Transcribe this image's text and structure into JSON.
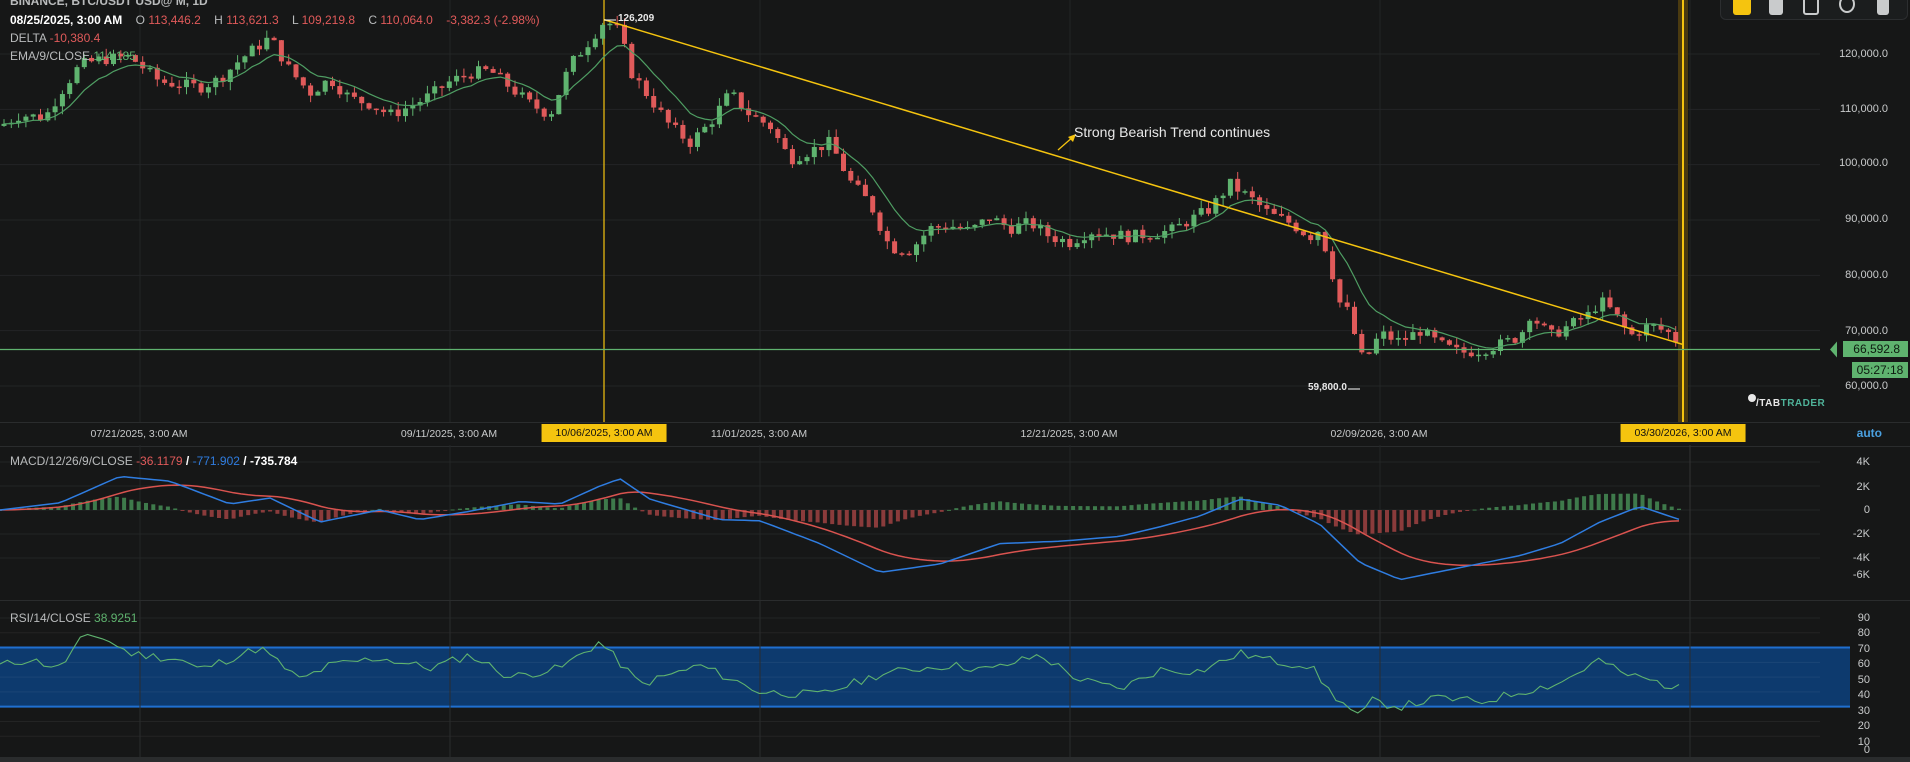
{
  "header": {
    "symbol_line": "BINANCE, BTC/USDT USD@ M, 1D",
    "date": "08/25/2025, 3:00 AM",
    "open_label": "O",
    "open": "113,446.2",
    "high_label": "H",
    "high": "113,621.3",
    "low_label": "L",
    "low": "109,219.8",
    "close_label": "C",
    "close": "110,064.0",
    "change": "-3,382.3 (-2.98%)",
    "delta_label": "DELTA",
    "delta": "-10,380.4",
    "ema_label": "EMA/9/CLOSE",
    "ema": "114,185"
  },
  "toolbar": {
    "buttons": [
      {
        "name": "color-swatch-icon",
        "color": "#f5c40f"
      },
      {
        "name": "lock-icon",
        "color": "#c9cbcc"
      },
      {
        "name": "copy-icon",
        "color": "#c9cbcc"
      },
      {
        "name": "edit-settings-icon",
        "color": "#c9cbcc"
      },
      {
        "name": "delete-icon",
        "color": "#c9cbcc"
      }
    ]
  },
  "price_axis": {
    "ticks": [
      "120,000.0",
      "110,000.0",
      "100,000.0",
      "90,000.0",
      "80,000.0",
      "70,000.0",
      "60,000.0"
    ],
    "current_price": "66,592.8",
    "countdown": "05:27:18"
  },
  "annotations": {
    "high_marker": "126,209",
    "low_marker": "59,800.0",
    "trend_text": "Strong Bearish Trend continues"
  },
  "time_axis": {
    "labels": [
      "07/21/2025, 3:00 AM",
      "09/11/2025, 3:00 AM",
      "10/06/2025, 3:00 AM",
      "11/01/2025, 3:00 AM",
      "12/21/2025, 3:00 AM",
      "02/09/2026, 3:00 AM",
      "03/30/2026, 3:00 AM"
    ],
    "highlighted": [
      "10/06/2025, 3:00 AM",
      "03/30/2026, 3:00 AM"
    ],
    "scale_mode": "auto"
  },
  "macd": {
    "label": "MACD/12/26/9/CLOSE",
    "histogram": "-36.1179",
    "macd": "-771.902",
    "signal": "-735.784",
    "ticks": [
      "4K",
      "2K",
      "0",
      "-2K",
      "-4K",
      "-6K"
    ]
  },
  "rsi": {
    "label": "RSI/14/CLOSE",
    "value": "38.9251",
    "ticks": [
      "90",
      "80",
      "70",
      "60",
      "50",
      "40",
      "30",
      "20",
      "10",
      "0"
    ]
  },
  "logo": {
    "part1": "TAB",
    "part2": "TRADER"
  },
  "colors": {
    "up": "#5fb36f",
    "down": "#e05a5a",
    "trend": "#f5c40f",
    "macd_line": "#2f7de1",
    "signal_line": "#d9534f",
    "rsi_band": "#0d3a6e",
    "rsi_line": "#5fb36f"
  },
  "chart_data": {
    "type": "candlestick",
    "title": "BTC/USDT 1D",
    "price_range": [
      57000,
      127000
    ],
    "price_anchors": [
      [
        0,
        107000
      ],
      [
        20,
        109000
      ],
      [
        45,
        108500
      ],
      [
        60,
        113000
      ],
      [
        80,
        118000
      ],
      [
        100,
        119000
      ],
      [
        130,
        119500
      ],
      [
        160,
        115000
      ],
      [
        180,
        114500
      ],
      [
        200,
        114000
      ],
      [
        220,
        115500
      ],
      [
        240,
        119000
      ],
      [
        270,
        123000
      ],
      [
        290,
        117000
      ],
      [
        310,
        113000
      ],
      [
        330,
        115500
      ],
      [
        350,
        112000
      ],
      [
        370,
        111000
      ],
      [
        390,
        109000
      ],
      [
        410,
        110500
      ],
      [
        430,
        112500
      ],
      [
        450,
        115000
      ],
      [
        470,
        116500
      ],
      [
        490,
        117000
      ],
      [
        510,
        114000
      ],
      [
        530,
        111000
      ],
      [
        550,
        109000
      ],
      [
        570,
        118000
      ],
      [
        590,
        122500
      ],
      [
        605,
        126200
      ],
      [
        620,
        124000
      ],
      [
        630,
        117000
      ],
      [
        650,
        112000
      ],
      [
        670,
        107000
      ],
      [
        690,
        104000
      ],
      [
        710,
        107500
      ],
      [
        730,
        113000
      ],
      [
        750,
        109000
      ],
      [
        770,
        107000
      ],
      [
        790,
        101000
      ],
      [
        810,
        102500
      ],
      [
        830,
        104000
      ],
      [
        850,
        97000
      ],
      [
        870,
        93000
      ],
      [
        890,
        85000
      ],
      [
        910,
        84500
      ],
      [
        930,
        88500
      ],
      [
        950,
        89000
      ],
      [
        970,
        88000
      ],
      [
        990,
        90500
      ],
      [
        1010,
        88500
      ],
      [
        1030,
        89500
      ],
      [
        1050,
        87000
      ],
      [
        1070,
        86000
      ],
      [
        1090,
        88000
      ],
      [
        1110,
        87500
      ],
      [
        1130,
        87000
      ],
      [
        1150,
        87500
      ],
      [
        1170,
        88000
      ],
      [
        1190,
        90000
      ],
      [
        1210,
        92000
      ],
      [
        1230,
        96500
      ],
      [
        1250,
        94000
      ],
      [
        1270,
        91000
      ],
      [
        1290,
        89500
      ],
      [
        1310,
        87000
      ],
      [
        1320,
        88500
      ],
      [
        1330,
        82000
      ],
      [
        1340,
        75000
      ],
      [
        1350,
        73000
      ],
      [
        1360,
        65000
      ],
      [
        1370,
        66000
      ],
      [
        1380,
        69500
      ],
      [
        1400,
        68000
      ],
      [
        1420,
        70000
      ],
      [
        1440,
        67500
      ],
      [
        1460,
        66000
      ],
      [
        1480,
        66500
      ],
      [
        1500,
        67500
      ],
      [
        1520,
        69000
      ],
      [
        1530,
        73000
      ],
      [
        1550,
        69000
      ],
      [
        1570,
        71000
      ],
      [
        1590,
        73000
      ],
      [
        1600,
        75500
      ],
      [
        1615,
        73000
      ],
      [
        1630,
        69000
      ],
      [
        1650,
        71000
      ],
      [
        1670,
        69500
      ],
      [
        1685,
        66500
      ]
    ],
    "ema_period": 9,
    "trendline": {
      "from": [
        "10/06/2025",
        126209
      ],
      "to": [
        "03/30/2026",
        67500
      ]
    },
    "current_price": 66592.8,
    "indicators": {
      "macd": {
        "range": [
          -6500,
          4500
        ],
        "anchors": [
          [
            0,
            0
          ],
          [
            60,
            600
          ],
          [
            120,
            2800
          ],
          [
            170,
            2400
          ],
          [
            230,
            500
          ],
          [
            270,
            1000
          ],
          [
            320,
            -1000
          ],
          [
            380,
            0
          ],
          [
            420,
            -800
          ],
          [
            470,
            -100
          ],
          [
            520,
            700
          ],
          [
            560,
            500
          ],
          [
            600,
            2000
          ],
          [
            620,
            2600
          ],
          [
            650,
            900
          ],
          [
            720,
            -800
          ],
          [
            760,
            -900
          ],
          [
            820,
            -2800
          ],
          [
            880,
            -5200
          ],
          [
            940,
            -4500
          ],
          [
            1000,
            -2800
          ],
          [
            1060,
            -2600
          ],
          [
            1120,
            -2200
          ],
          [
            1160,
            -1400
          ],
          [
            1200,
            -500
          ],
          [
            1240,
            900
          ],
          [
            1280,
            400
          ],
          [
            1320,
            -1200
          ],
          [
            1360,
            -4400
          ],
          [
            1400,
            -5800
          ],
          [
            1460,
            -4800
          ],
          [
            1520,
            -3800
          ],
          [
            1560,
            -2800
          ],
          [
            1600,
            -1000
          ],
          [
            1640,
            300
          ],
          [
            1680,
            -800
          ]
        ]
      },
      "rsi": {
        "range": [
          0,
          100
        ],
        "overbought": 70,
        "oversold": 30,
        "anchors": [
          [
            0,
            58
          ],
          [
            30,
            62
          ],
          [
            60,
            56
          ],
          [
            80,
            75
          ],
          [
            100,
            78
          ],
          [
            130,
            66
          ],
          [
            180,
            62
          ],
          [
            200,
            55
          ],
          [
            260,
            70
          ],
          [
            300,
            48
          ],
          [
            330,
            58
          ],
          [
            380,
            63
          ],
          [
            430,
            56
          ],
          [
            470,
            65
          ],
          [
            510,
            50
          ],
          [
            560,
            56
          ],
          [
            600,
            74
          ],
          [
            640,
            45
          ],
          [
            700,
            58
          ],
          [
            760,
            40
          ],
          [
            820,
            38
          ],
          [
            880,
            52
          ],
          [
            920,
            56
          ],
          [
            950,
            58
          ],
          [
            990,
            55
          ],
          [
            1040,
            65
          ],
          [
            1080,
            48
          ],
          [
            1120,
            42
          ],
          [
            1160,
            55
          ],
          [
            1200,
            54
          ],
          [
            1240,
            66
          ],
          [
            1280,
            60
          ],
          [
            1310,
            58
          ],
          [
            1330,
            40
          ],
          [
            1350,
            28
          ],
          [
            1360,
            22
          ],
          [
            1370,
            34
          ],
          [
            1400,
            30
          ],
          [
            1440,
            36
          ],
          [
            1480,
            33
          ],
          [
            1520,
            40
          ],
          [
            1560,
            46
          ],
          [
            1600,
            62
          ],
          [
            1620,
            53
          ],
          [
            1650,
            48
          ],
          [
            1680,
            42
          ]
        ]
      }
    }
  }
}
